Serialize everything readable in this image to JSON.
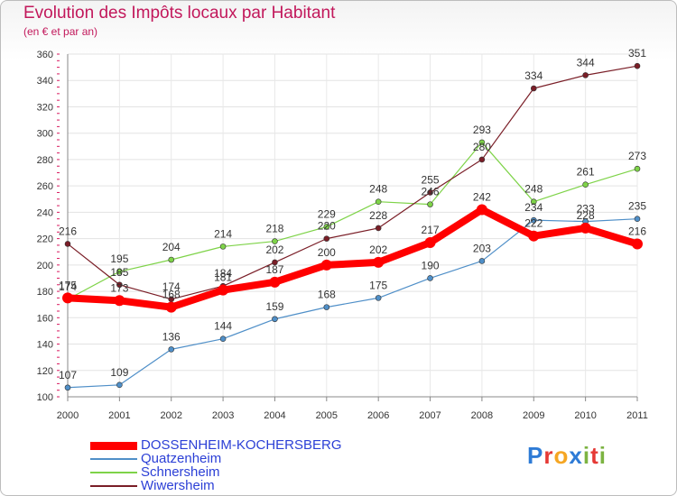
{
  "header": {
    "title": "Evolution des Impôts locaux par Habitant",
    "subtitle": "(en € et par an)"
  },
  "logo": {
    "letters": [
      "P",
      "r",
      "o",
      "x",
      "i",
      "t",
      "i"
    ],
    "colors": [
      "#2e7bd6",
      "#e53935",
      "#f5a623",
      "#2e7bd6",
      "#7cb342",
      "#e53935",
      "#7cb342"
    ]
  },
  "chart_data": {
    "type": "line",
    "title": "Evolution des Impôts locaux par Habitant",
    "subtitle": "(en € et par an)",
    "xlabel": "",
    "ylabel": "",
    "categories": [
      "2000",
      "2001",
      "2002",
      "2003",
      "2004",
      "2005",
      "2006",
      "2007",
      "2008",
      "2009",
      "2010",
      "2011"
    ],
    "ylim": [
      100,
      360
    ],
    "yticks": [
      100,
      120,
      140,
      160,
      180,
      200,
      220,
      240,
      260,
      280,
      300,
      320,
      340,
      360
    ],
    "grid": true,
    "series": [
      {
        "name": "DOSSENHEIM-KOCHERSBERG",
        "color": "#ff0000",
        "values": [
          175,
          173,
          168,
          181,
          187,
          200,
          202,
          217,
          242,
          222,
          228,
          216
        ],
        "labels": [
          "175",
          "173",
          "168",
          "181",
          "187",
          "200",
          "202",
          "217",
          "242",
          "222",
          "228",
          "216"
        ]
      },
      {
        "name": "Quatzenheim",
        "color": "#4f8fc8",
        "values": [
          107,
          109,
          136,
          144,
          159,
          168,
          175,
          190,
          203,
          234,
          233,
          235
        ],
        "labels": [
          "107",
          "109",
          "136",
          "144",
          "159",
          "168",
          "175",
          "190",
          "203",
          "234",
          "233",
          "235"
        ]
      },
      {
        "name": "Schnersheim",
        "color": "#7ed348",
        "values": [
          174,
          195,
          204,
          214,
          218,
          229,
          248,
          246,
          293,
          248,
          261,
          273
        ],
        "labels": [
          "174",
          "195",
          "204",
          "214",
          "218",
          "229",
          "248",
          "246",
          "293",
          "248",
          "261",
          "273"
        ]
      },
      {
        "name": "Wiwersheim",
        "color": "#7a1e27",
        "values": [
          216,
          185,
          174,
          184,
          202,
          220,
          228,
          255,
          280,
          334,
          344,
          351
        ],
        "labels": [
          "216",
          "185",
          "174",
          "184",
          "202",
          "220",
          "228",
          "255",
          "280",
          "334",
          "344",
          "351"
        ]
      }
    ],
    "legend_position": "bottom-left"
  }
}
